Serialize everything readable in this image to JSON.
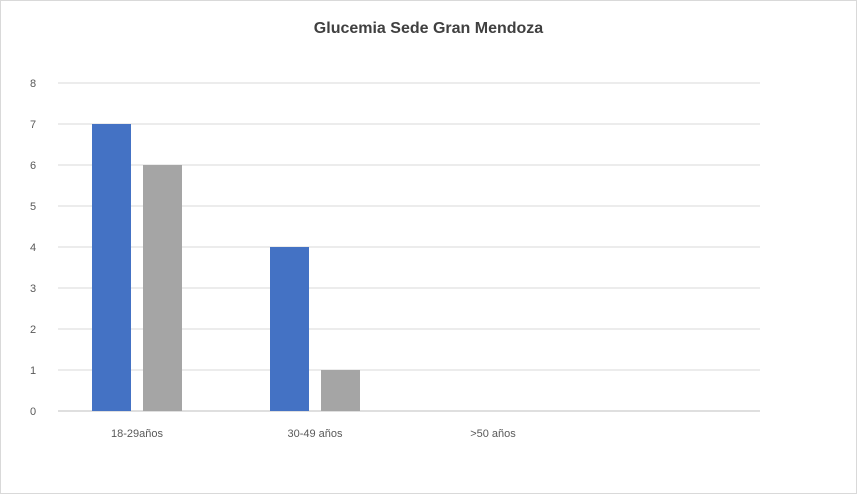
{
  "chart_data": {
    "type": "bar",
    "title": "Glucemia Sede Gran Mendoza",
    "categories": [
      "18-29años",
      "30-49 años",
      ">50 años"
    ],
    "series": [
      {
        "values": [
          7,
          4,
          0
        ],
        "color": "#4472c4"
      },
      {
        "values": [
          6,
          1,
          0
        ],
        "color": "#a5a5a5"
      }
    ],
    "ylim": [
      0,
      8
    ],
    "yticks": [
      0,
      1,
      2,
      3,
      4,
      5,
      6,
      7,
      8
    ],
    "grid": true,
    "legend": "none"
  }
}
